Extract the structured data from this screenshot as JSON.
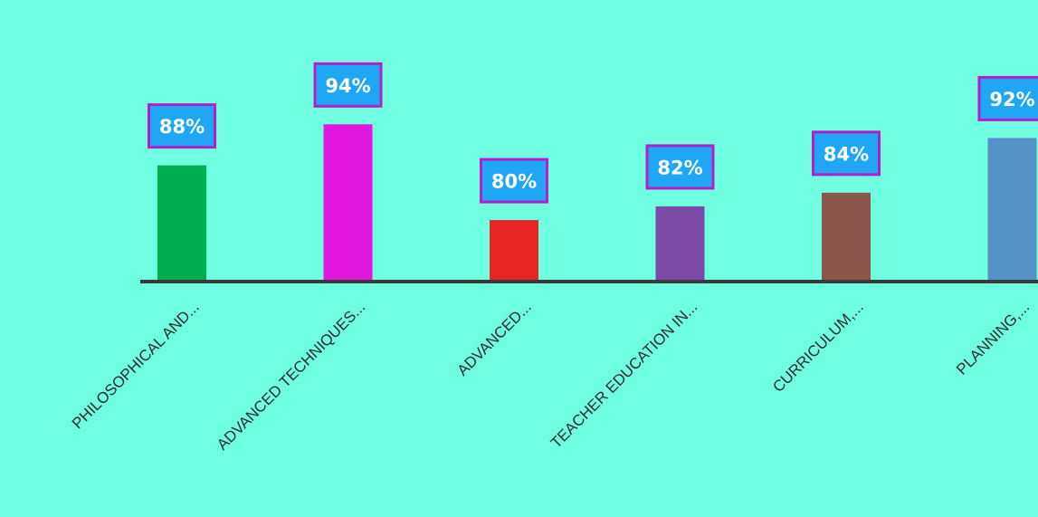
{
  "chart_data": {
    "type": "bar",
    "categories": [
      "PHILOSOPHICAL AND...",
      "ADVANCED TECHNIQUES...",
      "ADVANCED...",
      "TEACHER EDUCATION IN...",
      "CURRICULUM,...",
      "PLANNING,..."
    ],
    "values": [
      88,
      94,
      80,
      82,
      84,
      92
    ],
    "data_labels": [
      "88%",
      "94%",
      "80%",
      "82%",
      "84%",
      "92%"
    ],
    "colors": [
      "#00b050",
      "#e316e0",
      "#e82626",
      "#7a4aa6",
      "#8c554b",
      "#5491c4"
    ],
    "label_box_color": "#1fa6f4",
    "label_border_color": "#b61ec9",
    "background": "#6fffe0",
    "axis_color": "#3a3a3a",
    "ylim": [
      71,
      100
    ],
    "grid": false,
    "legend": false
  }
}
